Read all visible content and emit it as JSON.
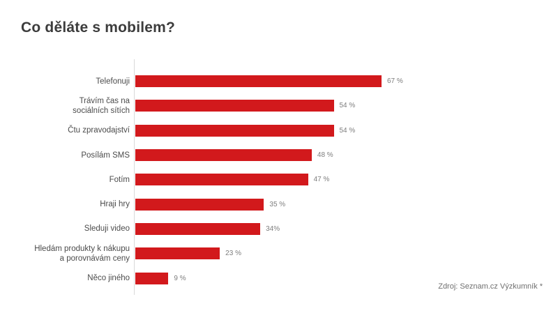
{
  "page": {
    "background_color": "#ffffff"
  },
  "header": {
    "title": "Co děláte s mobilem?"
  },
  "footer": {
    "source": "Zdroj: Seznam.cz Výzkumník *"
  },
  "chart_data": {
    "type": "bar",
    "orientation": "horizontal",
    "title": "Co děláte s mobilem?",
    "xlabel": "",
    "ylabel": "",
    "xlim": [
      0,
      70
    ],
    "grid": false,
    "bar_color": "#d2191c",
    "axis_line_color": "#d9d9d9",
    "scale_max": 67,
    "categories": [
      "Telefonuji",
      "Trávím čas na sociálních sítích",
      "Čtu zpravodajství",
      "Posílám SMS",
      "Fotím",
      "Hraji hry",
      "Sleduji video",
      "Hledám produkty k nákupu a porovnávám ceny",
      "Něco jiného"
    ],
    "values": [
      67,
      54,
      54,
      48,
      47,
      35,
      34,
      23,
      9
    ],
    "bars": [
      {
        "lines": [
          "Telefonuji"
        ],
        "value": 67,
        "display": "67 %"
      },
      {
        "lines": [
          "Trávím čas na",
          "sociálních sítích"
        ],
        "value": 54,
        "display": "54 %"
      },
      {
        "lines": [
          "Čtu zpravodajství"
        ],
        "value": 54,
        "display": "54 %"
      },
      {
        "lines": [
          "Posílám SMS"
        ],
        "value": 48,
        "display": "48 %"
      },
      {
        "lines": [
          "Fotím"
        ],
        "value": 47,
        "display": "47 %"
      },
      {
        "lines": [
          "Hraji hry"
        ],
        "value": 35,
        "display": "35 %"
      },
      {
        "lines": [
          "Sleduji  video"
        ],
        "value": 34,
        "display": "34%"
      },
      {
        "lines": [
          "Hledám produkty k nákupu",
          "a porovnávám ceny"
        ],
        "value": 23,
        "display": "23 %"
      },
      {
        "lines": [
          "Něco jiného"
        ],
        "value": 9,
        "display": "9 %"
      }
    ]
  }
}
